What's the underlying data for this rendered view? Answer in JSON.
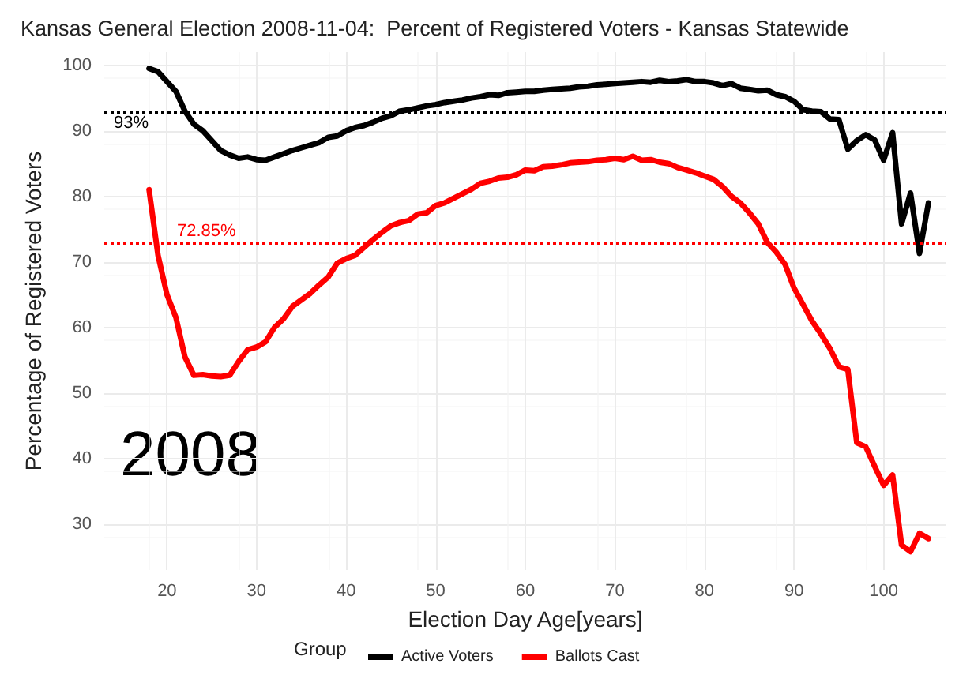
{
  "chart_data": {
    "type": "line",
    "title": "Kansas General Election 2008-11-04:  Percent of Registered Voters - Kansas Statewide",
    "xlabel": "Election Day Age[years]",
    "ylabel": "Percentage of Registered Voters",
    "legend_title": "Group",
    "annotations": [
      "2008"
    ],
    "x": [
      18,
      19,
      20,
      21,
      22,
      23,
      24,
      25,
      26,
      27,
      28,
      29,
      30,
      31,
      32,
      33,
      34,
      35,
      36,
      37,
      38,
      39,
      40,
      41,
      42,
      43,
      44,
      45,
      46,
      47,
      48,
      49,
      50,
      51,
      52,
      53,
      54,
      55,
      56,
      57,
      58,
      59,
      60,
      61,
      62,
      63,
      64,
      65,
      66,
      67,
      68,
      69,
      70,
      71,
      72,
      73,
      74,
      75,
      76,
      77,
      78,
      79,
      80,
      81,
      82,
      83,
      84,
      85,
      86,
      87,
      88,
      89,
      90,
      91,
      92,
      93,
      94,
      95,
      96,
      97,
      98,
      99,
      100,
      101,
      102,
      103,
      104,
      105
    ],
    "series": [
      {
        "name": "Active Voters",
        "color": "#000000",
        "values": [
          99.5,
          99,
          97.5,
          96,
          93,
          91,
          90,
          88.5,
          87,
          86.3,
          85.8,
          86,
          85.6,
          85.5,
          86,
          86.5,
          87,
          87.4,
          87.8,
          88.2,
          89,
          89.2,
          90,
          90.5,
          90.8,
          91.3,
          91.9,
          92.3,
          93,
          93.2,
          93.5,
          93.8,
          94,
          94.3,
          94.5,
          94.7,
          95,
          95.2,
          95.5,
          95.4,
          95.8,
          95.9,
          96,
          96,
          96.2,
          96.3,
          96.4,
          96.5,
          96.7,
          96.8,
          97,
          97.1,
          97.2,
          97.3,
          97.4,
          97.5,
          97.4,
          97.7,
          97.5,
          97.6,
          97.8,
          97.5,
          97.5,
          97.3,
          96.9,
          97.2,
          96.5,
          96.3,
          96.1,
          96.2,
          95.5,
          95.2,
          94.5,
          93.2,
          93,
          92.9,
          91.8,
          91.7,
          87.2,
          88.5,
          89.4,
          88.6,
          85.5,
          89.7,
          75.8,
          80.5,
          71.3,
          79
        ]
      },
      {
        "name": "Ballots Cast",
        "color": "#ff0000",
        "values": [
          81,
          71,
          65,
          61.5,
          55.5,
          52.7,
          52.8,
          52.6,
          52.5,
          52.7,
          54.8,
          56.6,
          57,
          57.8,
          60,
          61.3,
          63.2,
          64.2,
          65.2,
          66.5,
          67.7,
          69.8,
          70.5,
          71,
          72.2,
          73.4,
          74.5,
          75.5,
          76,
          76.3,
          77.3,
          77.5,
          78.6,
          79,
          79.7,
          80.4,
          81.1,
          82,
          82.3,
          82.8,
          82.9,
          83.3,
          84,
          83.9,
          84.5,
          84.6,
          84.8,
          85.1,
          85.2,
          85.3,
          85.5,
          85.6,
          85.8,
          85.6,
          86.1,
          85.5,
          85.6,
          85.2,
          85,
          84.4,
          84,
          83.6,
          83.1,
          82.6,
          81.5,
          80,
          79,
          77.5,
          75.8,
          73,
          71.5,
          69.6,
          66,
          63.5,
          61,
          59,
          56.8,
          54,
          53.6,
          42.4,
          41.8,
          38.8,
          35.9,
          37.5,
          26.8,
          25.8,
          28.6,
          27.8
        ]
      }
    ],
    "xlim": [
      13,
      107
    ],
    "xticks": [
      20,
      30,
      40,
      50,
      60,
      70,
      80,
      90,
      100
    ],
    "ylim": [
      23,
      102
    ],
    "yticks": [
      30,
      40,
      50,
      60,
      70,
      80,
      90,
      100
    ],
    "ref_lines": [
      {
        "axis": "y",
        "value": 93,
        "label": "93%",
        "color": "#000000",
        "line_style": "dotted"
      },
      {
        "axis": "y",
        "value": 72.85,
        "label": "72.85%",
        "color": "#ff0000",
        "line_style": "dotted"
      }
    ],
    "grid": true,
    "legend": "bottom",
    "marker": "none",
    "line_style": "solid"
  }
}
